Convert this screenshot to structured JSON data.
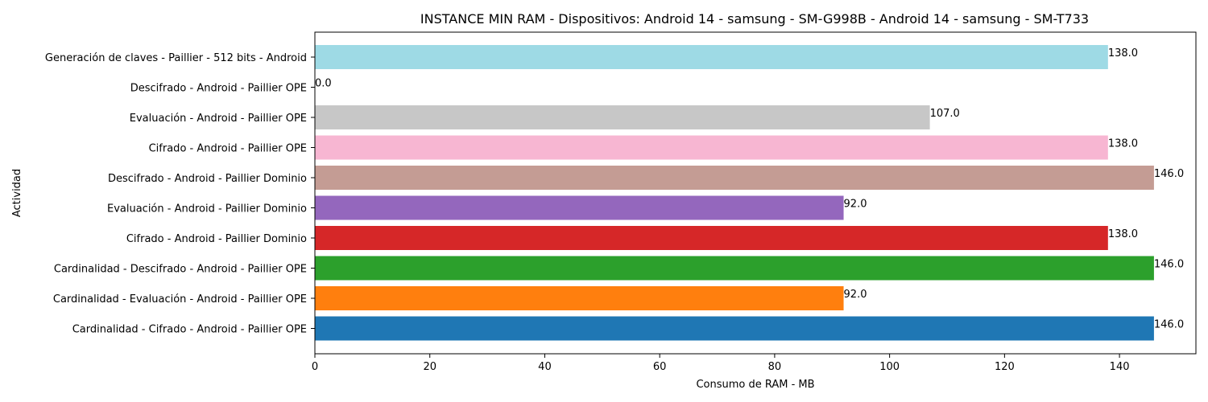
{
  "chart_data": {
    "type": "bar",
    "orientation": "horizontal",
    "title": "INSTANCE MIN RAM - Dispositivos: Android 14 - samsung - SM-G998B - Android 14 - samsung - SM-T733",
    "xlabel": "Consumo de RAM - MB",
    "ylabel": "Actividad",
    "xlim": [
      0,
      153.3
    ],
    "xticks": [
      0,
      20,
      40,
      60,
      80,
      100,
      120,
      140
    ],
    "grid": false,
    "categories": [
      "Cardinalidad - Cifrado - Android - Paillier OPE",
      "Cardinalidad - Evaluación - Android - Paillier OPE",
      "Cardinalidad - Descifrado - Android - Paillier OPE",
      "Cifrado - Android - Paillier Dominio",
      "Evaluación - Android - Paillier Dominio",
      "Descifrado - Android - Paillier Dominio",
      "Cifrado - Android - Paillier OPE",
      "Evaluación - Android - Paillier OPE",
      "Descifrado - Android - Paillier OPE",
      "Generación de claves - Paillier - 512 bits - Android"
    ],
    "values": [
      146.0,
      92.0,
      146.0,
      138.0,
      92.0,
      146.0,
      138.0,
      107.0,
      0.0,
      138.0
    ],
    "value_labels": [
      "146.0",
      "92.0",
      "146.0",
      "138.0",
      "92.0",
      "146.0",
      "138.0",
      "107.0",
      "0.0",
      "138.0"
    ],
    "colors": [
      "#1f77b4",
      "#ff7f0e",
      "#2ca02c",
      "#d62728",
      "#9467bd",
      "#c49c94",
      "#f7b6d2",
      "#c7c7c7",
      "#dbdb8d",
      "#9edae5"
    ]
  }
}
